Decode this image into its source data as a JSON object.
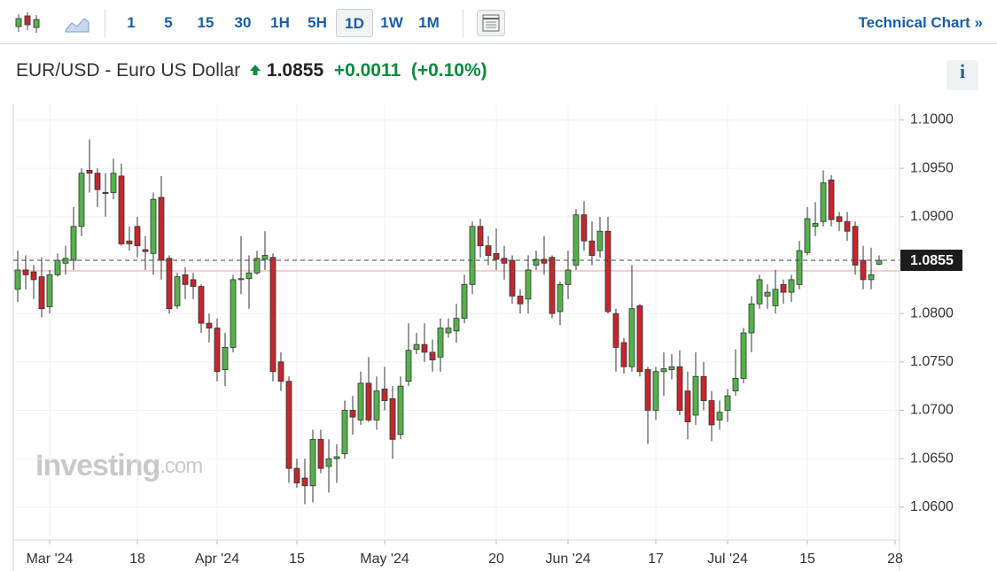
{
  "toolbar": {
    "intervals": [
      "1",
      "5",
      "15",
      "30",
      "1H",
      "5H",
      "1D",
      "1W",
      "1M"
    ],
    "selected": "1D",
    "link": "Technical Chart",
    "link_arrow": "»"
  },
  "info_button": "i",
  "chart_data": {
    "type": "candlestick",
    "title": "EUR/USD - Euro US Dollar",
    "last_price": 1.0855,
    "change": "+0.0011",
    "change_pct": "(+0.10%)",
    "prev_close": 1.0844,
    "watermark": [
      "Investing",
      ".com"
    ],
    "up_color": "#55b04c",
    "down_color": "#c2272d",
    "categories": [
      null,
      null,
      null,
      null,
      "Mar '24",
      null,
      null,
      null,
      null,
      null,
      null,
      null,
      null,
      null,
      null,
      "18",
      null,
      null,
      null,
      null,
      null,
      null,
      null,
      null,
      null,
      "Apr '24",
      null,
      null,
      null,
      null,
      null,
      null,
      null,
      null,
      null,
      "15",
      null,
      null,
      null,
      null,
      null,
      null,
      null,
      null,
      null,
      null,
      "May '24",
      null,
      null,
      null,
      null,
      null,
      null,
      null,
      null,
      null,
      null,
      null,
      null,
      null,
      "20",
      null,
      null,
      null,
      null,
      null,
      null,
      null,
      null,
      "Jun '24",
      null,
      null,
      null,
      null,
      null,
      null,
      null,
      null,
      null,
      null,
      "17",
      null,
      null,
      null,
      null,
      null,
      null,
      null,
      null,
      "Jul '24",
      null,
      null,
      null,
      null,
      null,
      null,
      null,
      null,
      null,
      "15",
      null,
      null,
      null,
      null,
      null,
      null,
      null,
      null,
      null,
      null,
      "28"
    ],
    "open": [
      1.0825,
      1.0845,
      1.0843,
      1.0838,
      1.0807,
      1.084,
      1.0852,
      1.0855,
      1.089,
      1.0948,
      1.0945,
      1.0925,
      1.0925,
      1.0942,
      1.0875,
      1.089,
      1.0866,
      1.0862,
      1.092,
      1.0857,
      1.0808,
      1.084,
      1.0835,
      1.0828,
      1.079,
      1.0785,
      1.0742,
      1.0765,
      1.0835,
      1.0836,
      1.0842,
      1.0856,
      1.0858,
      1.075,
      1.073,
      1.064,
      1.063,
      1.0622,
      1.067,
      1.0642,
      1.065,
      1.0655,
      1.07,
      1.069,
      1.0728,
      1.069,
      1.0722,
      1.0712,
      1.0675,
      1.073,
      1.0763,
      1.0768,
      1.076,
      1.0755,
      1.078,
      1.0782,
      1.0795,
      1.083,
      1.089,
      1.087,
      1.0862,
      1.0857,
      1.0855,
      1.0818,
      1.0815,
      1.085,
      1.0856,
      1.0858,
      1.0802,
      1.083,
      1.085,
      1.0902,
      1.0875,
      1.0865,
      1.0885,
      1.08,
      1.077,
      1.0745,
      1.0808,
      1.0742,
      1.07,
      1.074,
      1.0742,
      1.0745,
      1.072,
      1.0695,
      1.0735,
      1.071,
      1.069,
      1.07,
      1.072,
      1.0733,
      1.078,
      1.081,
      1.0818,
      1.0808,
      1.083,
      1.0822,
      1.083,
      1.0863,
      1.089,
      1.0895,
      1.0938,
      1.09,
      1.0895,
      1.089,
      1.0855,
      1.0835,
      1.0851,
      null,
      null
    ],
    "high": [
      1.0865,
      1.086,
      1.085,
      1.0858,
      1.0845,
      1.0862,
      1.087,
      1.091,
      1.095,
      1.098,
      1.095,
      1.0945,
      1.096,
      1.0955,
      1.089,
      1.09,
      1.088,
      1.0925,
      1.0942,
      1.086,
      1.0842,
      1.0848,
      1.0842,
      1.083,
      1.08,
      1.0795,
      1.078,
      1.084,
      1.088,
      1.086,
      1.0865,
      1.0885,
      1.0862,
      1.076,
      1.0735,
      1.065,
      1.065,
      1.068,
      1.068,
      1.067,
      1.0665,
      1.071,
      1.0715,
      1.074,
      1.0755,
      1.0735,
      1.0745,
      1.0725,
      1.0735,
      1.079,
      1.078,
      1.079,
      1.0773,
      1.0795,
      1.0795,
      1.081,
      1.084,
      1.0895,
      1.0898,
      1.088,
      1.0888,
      1.087,
      1.086,
      1.0825,
      1.086,
      1.0865,
      1.088,
      1.086,
      1.0833,
      1.0865,
      1.0908,
      1.0916,
      1.0895,
      1.09,
      1.09,
      1.0805,
      1.0775,
      1.085,
      1.081,
      1.0745,
      1.0745,
      1.076,
      1.0758,
      1.0762,
      1.074,
      1.076,
      1.075,
      1.072,
      1.071,
      1.0722,
      1.0763,
      1.0785,
      1.0818,
      1.084,
      1.083,
      1.0845,
      1.0835,
      1.084,
      1.0875,
      1.091,
      1.0915,
      1.0948,
      1.0943,
      1.0905,
      1.0905,
      1.0895,
      1.087,
      1.0868,
      1.086,
      null,
      null
    ],
    "low": [
      1.0812,
      1.0825,
      1.0815,
      1.0796,
      1.08,
      1.0838,
      1.084,
      1.0845,
      1.088,
      1.0925,
      1.091,
      1.09,
      1.0918,
      1.087,
      1.0865,
      1.0858,
      1.0845,
      1.084,
      1.0835,
      1.08,
      1.0805,
      1.0815,
      1.0815,
      1.078,
      1.077,
      1.073,
      1.0725,
      1.076,
      1.082,
      1.0805,
      1.084,
      1.0845,
      1.073,
      1.072,
      1.0625,
      1.062,
      1.0603,
      1.0605,
      1.0635,
      1.0615,
      1.0625,
      1.065,
      1.0675,
      1.0685,
      1.0688,
      1.068,
      1.07,
      1.065,
      1.067,
      1.0725,
      1.0758,
      1.075,
      1.074,
      1.074,
      1.0775,
      1.077,
      1.079,
      1.082,
      1.0858,
      1.085,
      1.0845,
      1.0835,
      1.081,
      1.08,
      1.08,
      1.0845,
      1.084,
      1.0795,
      1.0788,
      1.0815,
      1.0845,
      1.0865,
      1.085,
      1.0858,
      1.08,
      1.074,
      1.0738,
      1.074,
      1.0735,
      1.0665,
      1.069,
      1.0715,
      1.0732,
      1.0695,
      1.067,
      1.0685,
      1.07,
      1.0668,
      1.068,
      1.0688,
      1.0715,
      1.0728,
      1.076,
      1.0805,
      1.0805,
      1.08,
      1.081,
      1.0812,
      1.0825,
      1.086,
      1.088,
      1.089,
      1.089,
      1.0885,
      1.0875,
      1.084,
      1.0825,
      1.0825,
      1.085,
      null,
      null
    ],
    "close": [
      1.0845,
      1.084,
      1.0835,
      1.0805,
      1.084,
      1.0855,
      1.0857,
      1.089,
      1.0945,
      1.0945,
      1.0928,
      1.0924,
      1.0945,
      1.0872,
      1.0872,
      1.087,
      1.0864,
      1.0918,
      1.0855,
      1.0805,
      1.0838,
      1.083,
      1.0828,
      1.079,
      1.0785,
      1.074,
      1.0765,
      1.0835,
      1.0836,
      1.0842,
      1.0857,
      1.086,
      1.074,
      1.073,
      1.064,
      1.0625,
      1.0622,
      1.067,
      1.064,
      1.065,
      1.0652,
      1.07,
      1.0693,
      1.0728,
      1.069,
      1.072,
      1.071,
      1.067,
      1.0725,
      1.0762,
      1.0768,
      1.076,
      1.0752,
      1.0785,
      1.0785,
      1.0795,
      1.083,
      1.089,
      1.087,
      1.086,
      1.0856,
      1.0852,
      1.0818,
      1.081,
      1.0845,
      1.0856,
      1.0852,
      1.08,
      1.083,
      1.0845,
      1.0902,
      1.0875,
      1.086,
      1.0885,
      1.0802,
      1.0765,
      1.0745,
      1.0805,
      1.074,
      1.07,
      1.074,
      1.0743,
      1.0745,
      1.07,
      1.0688,
      1.0735,
      1.071,
      1.0685,
      1.0698,
      1.0715,
      1.0733,
      1.078,
      1.081,
      1.0835,
      1.0822,
      1.0825,
      1.0822,
      1.0835,
      1.0865,
      1.0898,
      1.0893,
      1.0935,
      1.0897,
      1.0895,
      1.0885,
      1.085,
      1.0835,
      1.084,
      1.0855,
      null,
      null
    ],
    "ylim": [
      1.0566,
      1.1016
    ],
    "yticks": [
      {
        "value": 1.06,
        "label": "1.0600"
      },
      {
        "value": 1.065,
        "label": "1.0650"
      },
      {
        "value": 1.07,
        "label": "1.0700"
      },
      {
        "value": 1.075,
        "label": "1.0750"
      },
      {
        "value": 1.08,
        "label": "1.0800"
      },
      {
        "value": 1.085,
        "label": "1.0850"
      },
      {
        "value": 1.09,
        "label": "1.0900"
      },
      {
        "value": 1.095,
        "label": "1.0950"
      },
      {
        "value": 1.1,
        "label": "1.1000"
      }
    ],
    "grid": true
  }
}
